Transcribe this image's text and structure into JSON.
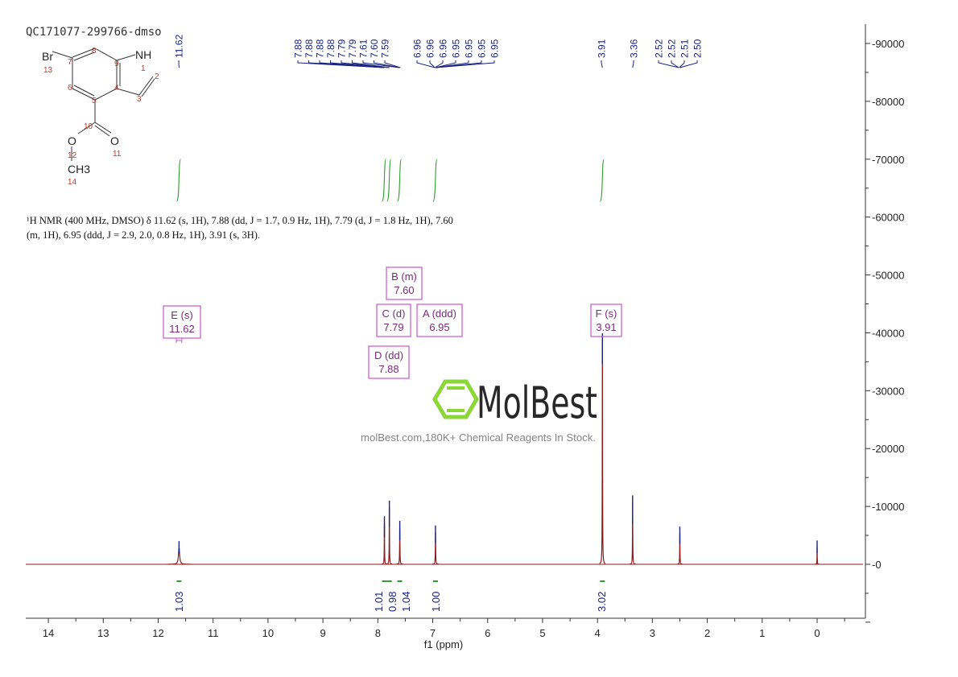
{
  "sample_name": "QC171077-299766-dmso",
  "description_line1": "¹H NMR (400 MHz, DMSO) δ 11.62 (s, 1H), 7.88 (dd, J = 1.7, 0.9 Hz, 1H), 7.79 (d, J = 1.8 Hz, 1H), 7.60",
  "description_line2": "(m, 1H), 6.95 (ddd, J = 2.9, 2.0, 0.8 Hz, 1H), 3.91 (s, 3H).",
  "structure": {
    "atoms": [
      "Br",
      "NH",
      "O",
      "O",
      "CH3"
    ],
    "numbers": [
      "1",
      "2",
      "3",
      "4",
      "5",
      "6",
      "7",
      "8",
      "9",
      "10",
      "11",
      "12",
      "13",
      "14"
    ]
  },
  "watermark": {
    "logo_text": "MolBest",
    "tagline": "molBest.com,180K+ Chemical Reagents In Stock."
  },
  "chart_data": {
    "type": "line",
    "xlabel": "f1 (ppm)",
    "ylabel": "",
    "xlim": [
      14.4,
      -0.85
    ],
    "ylim": [
      -9500,
      93000
    ],
    "x_reversed": true,
    "x_ticks": [
      "14",
      "13",
      "12",
      "11",
      "10",
      "9",
      "8",
      "7",
      "6",
      "5",
      "4",
      "3",
      "2",
      "1",
      "0"
    ],
    "y_ticks": [
      "90000",
      "80000",
      "70000",
      "60000",
      "50000",
      "40000",
      "30000",
      "20000",
      "10000",
      "0"
    ],
    "y_axis_position": "right",
    "grid": false,
    "colors": {
      "spectrum": "#8b1a1a",
      "peak_top": "#1a237e",
      "peak_labels": "#1a237e",
      "integral": "#2e9e2e",
      "multiplet": "#cc55cc",
      "multiplet_text": "#7a2a7a"
    },
    "peaks": [
      {
        "ppm": 11.62,
        "intensity": 2900,
        "width": 0.025
      },
      {
        "ppm": 7.88,
        "intensity": 7200,
        "width": 0.006
      },
      {
        "ppm": 7.79,
        "intensity": 9900,
        "width": 0.006
      },
      {
        "ppm": 7.6,
        "intensity": 6400,
        "width": 0.007
      },
      {
        "ppm": 6.95,
        "intensity": 5600,
        "width": 0.007
      },
      {
        "ppm": 3.91,
        "intensity": 38800,
        "width": 0.006
      },
      {
        "ppm": 3.36,
        "intensity": 10800,
        "width": 0.006
      },
      {
        "ppm": 2.5,
        "intensity": 5400,
        "width": 0.006
      },
      {
        "ppm": 0.0,
        "intensity": 3000,
        "width": 0.005
      }
    ],
    "peak_label_groups": [
      {
        "center": 11.62,
        "labels": [
          "11.62"
        ]
      },
      {
        "center": 7.74,
        "labels": [
          "7.88",
          "7.88",
          "7.88",
          "7.88",
          "7.79",
          "7.79",
          "7.61",
          "7.60",
          "7.59"
        ]
      },
      {
        "center": 6.95,
        "labels": [
          "6.96",
          "6.96",
          "6.96",
          "6.95",
          "6.95",
          "6.95",
          "6.95"
        ]
      },
      {
        "center": 3.91,
        "labels": [
          "3.91"
        ]
      },
      {
        "center": 3.36,
        "labels": [
          "3.36"
        ]
      },
      {
        "center": 2.51,
        "labels": [
          "2.52",
          "2.52",
          "2.51",
          "2.50"
        ]
      }
    ],
    "integrals": [
      {
        "ppm": 11.62,
        "value": "1.03"
      },
      {
        "ppm": 7.88,
        "value": "1.01"
      },
      {
        "ppm": 7.79,
        "value": "0.98"
      },
      {
        "ppm": 7.6,
        "value": "1.04"
      },
      {
        "ppm": 6.95,
        "value": "1.00"
      },
      {
        "ppm": 3.91,
        "value": "3.02"
      }
    ],
    "multiplets": [
      {
        "label": "E (s)",
        "shift": "11.62"
      },
      {
        "label": "B (m)",
        "shift": "7.60"
      },
      {
        "label": "C (d)",
        "shift": "7.79"
      },
      {
        "label": "A (ddd)",
        "shift": "6.95"
      },
      {
        "label": "D (dd)",
        "shift": "7.88"
      },
      {
        "label": "F (s)",
        "shift": "3.91"
      }
    ]
  }
}
